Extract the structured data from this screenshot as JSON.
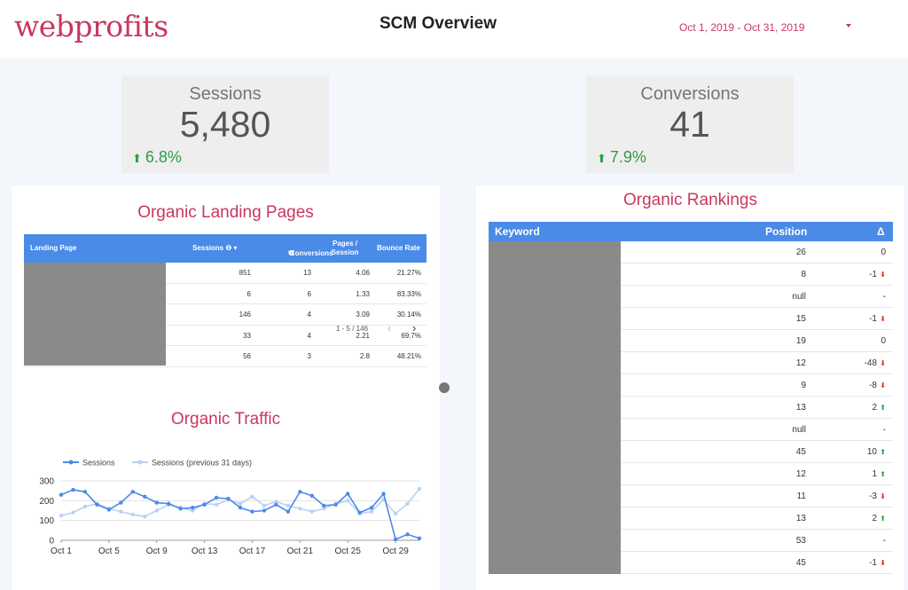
{
  "header": {
    "logo": "webprofits",
    "title": "SCM Overview",
    "date_range": "Oct 1, 2019 - Oct 31, 2019"
  },
  "kpis": [
    {
      "label": "Sessions",
      "value": "5,480",
      "delta": "6.8%"
    },
    {
      "label": "Conversions",
      "value": "41",
      "delta": "7.9%"
    }
  ],
  "landing_pages": {
    "title": "Organic Landing Pages",
    "columns": [
      "Landing Page",
      "Sessions",
      "Conversions",
      "Pages / Session",
      "Bounce Rate"
    ],
    "rows": [
      {
        "sessions": "851",
        "conversions": "13",
        "pages": "4.06",
        "bounce": "21.27%"
      },
      {
        "sessions": "6",
        "conversions": "6",
        "pages": "1.33",
        "bounce": "83.33%"
      },
      {
        "sessions": "146",
        "conversions": "4",
        "pages": "3.09",
        "bounce": "30.14%"
      },
      {
        "sessions": "33",
        "conversions": "4",
        "pages": "2.21",
        "bounce": "69.7%"
      },
      {
        "sessions": "56",
        "conversions": "3",
        "pages": "2.8",
        "bounce": "48.21%"
      }
    ],
    "pager": "1 - 5 / 146"
  },
  "traffic": {
    "title": "Organic Traffic"
  },
  "chart_data": {
    "type": "line",
    "x": [
      "Oct 1",
      "Oct 2",
      "Oct 3",
      "Oct 4",
      "Oct 5",
      "Oct 6",
      "Oct 7",
      "Oct 8",
      "Oct 9",
      "Oct 10",
      "Oct 11",
      "Oct 12",
      "Oct 13",
      "Oct 14",
      "Oct 15",
      "Oct 16",
      "Oct 17",
      "Oct 18",
      "Oct 19",
      "Oct 20",
      "Oct 21",
      "Oct 22",
      "Oct 23",
      "Oct 24",
      "Oct 25",
      "Oct 26",
      "Oct 27",
      "Oct 28",
      "Oct 29",
      "Oct 30",
      "Oct 31"
    ],
    "tick_labels": [
      "Oct 1",
      "Oct 5",
      "Oct 9",
      "Oct 13",
      "Oct 17",
      "Oct 21",
      "Oct 25",
      "Oct 29"
    ],
    "series": [
      {
        "name": "Sessions",
        "color": "#4a8be8",
        "values": [
          230,
          255,
          245,
          180,
          155,
          190,
          245,
          220,
          190,
          185,
          160,
          165,
          180,
          215,
          210,
          165,
          145,
          150,
          180,
          145,
          245,
          225,
          175,
          180,
          235,
          140,
          165,
          235,
          5,
          30,
          10
        ]
      },
      {
        "name": "Sessions (previous 31 days)",
        "color": "#b9d1f4",
        "values": [
          125,
          140,
          170,
          185,
          160,
          145,
          130,
          120,
          150,
          180,
          165,
          150,
          185,
          180,
          205,
          185,
          220,
          175,
          195,
          175,
          160,
          145,
          160,
          185,
          200,
          135,
          145,
          205,
          135,
          185,
          260
        ]
      }
    ],
    "ylim": [
      0,
      300
    ],
    "yticks": [
      0,
      100,
      200,
      300
    ],
    "legend": "top-left",
    "grid": true
  },
  "rankings": {
    "title": "Organic Rankings",
    "columns": [
      "Keyword",
      "Position",
      "Δ"
    ],
    "rows": [
      {
        "position": "26",
        "delta": "0",
        "dir": ""
      },
      {
        "position": "8",
        "delta": "-1",
        "dir": "down"
      },
      {
        "position": "null",
        "delta": "-",
        "dir": ""
      },
      {
        "position": "15",
        "delta": "-1",
        "dir": "down"
      },
      {
        "position": "19",
        "delta": "0",
        "dir": ""
      },
      {
        "position": "12",
        "delta": "-48",
        "dir": "down"
      },
      {
        "position": "9",
        "delta": "-8",
        "dir": "down"
      },
      {
        "position": "13",
        "delta": "2",
        "dir": "up"
      },
      {
        "position": "null",
        "delta": "-",
        "dir": ""
      },
      {
        "position": "45",
        "delta": "10",
        "dir": "up"
      },
      {
        "position": "12",
        "delta": "1",
        "dir": "up"
      },
      {
        "position": "11",
        "delta": "-3",
        "dir": "down"
      },
      {
        "position": "13",
        "delta": "2",
        "dir": "up"
      },
      {
        "position": "53",
        "delta": "-",
        "dir": ""
      },
      {
        "position": "45",
        "delta": "-1",
        "dir": "down"
      }
    ]
  }
}
